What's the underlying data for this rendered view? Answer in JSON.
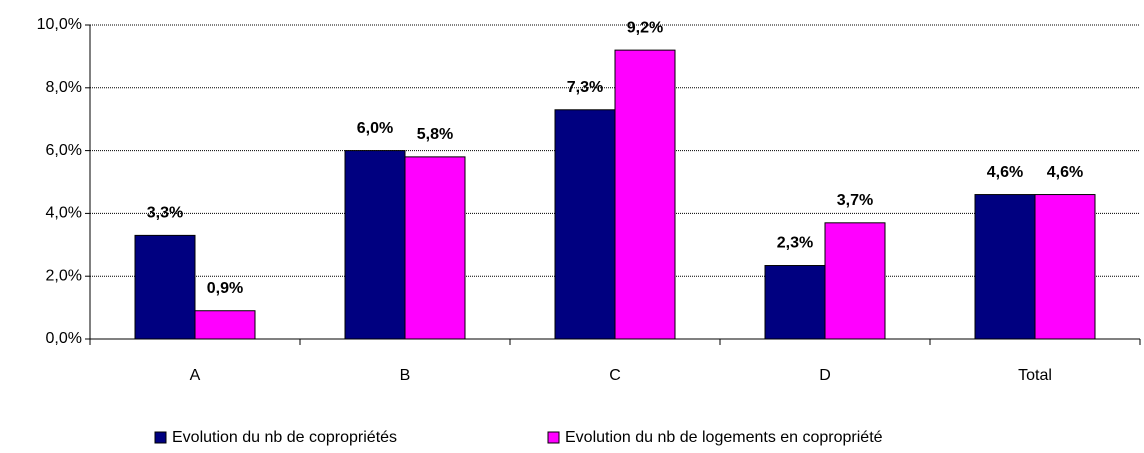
{
  "chart_data": {
    "type": "bar",
    "categories": [
      "A",
      "B",
      "C",
      "D",
      "Total"
    ],
    "series": [
      {
        "name": "Evolution du nb de copropriétés",
        "color": "#000080",
        "values": [
          3.3,
          6.0,
          7.3,
          2.34,
          4.6
        ],
        "value_labels": [
          "3,3%",
          "6,0%",
          "7,3%",
          "2,3%",
          "4,6%"
        ]
      },
      {
        "name": "Evolution du nb de logements en copropriété",
        "color": "#ff00ff",
        "values": [
          0.9,
          5.8,
          9.2,
          3.7,
          4.6
        ],
        "value_labels": [
          "0,9%",
          "5,8%",
          "9,2%",
          "3,7%",
          "4,6%"
        ]
      }
    ],
    "ylim": [
      0,
      10
    ],
    "yticks": [
      {
        "value": 0,
        "label": "0,0%"
      },
      {
        "value": 2,
        "label": "2,0%"
      },
      {
        "value": 4,
        "label": "4,0%"
      },
      {
        "value": 6,
        "label": "6,0%"
      },
      {
        "value": 8,
        "label": "8,0%"
      },
      {
        "value": 10,
        "label": "10,0%"
      }
    ],
    "grid": true
  }
}
